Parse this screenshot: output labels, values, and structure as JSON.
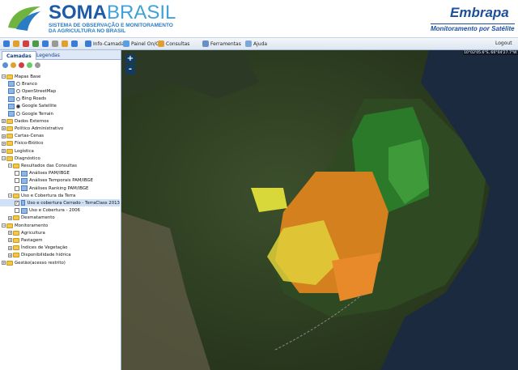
{
  "header": {
    "title_bold": "SOMA",
    "title_light": "BRASIL",
    "subtitle_lines": [
      "SISTEMA DE OBSERVAÇÃO E MONITORAMENTO",
      "DA AGRICULTURA NO BRASIL"
    ],
    "partner": "Embrapa",
    "partner_tagline": "Monitoramento por Satélite"
  },
  "toolbar": {
    "buttons": [
      "Info-Camada",
      "Painel On/Off",
      "Consultas",
      "Ferramentas",
      "Ajuda"
    ],
    "logout": "Logout"
  },
  "panel": {
    "tabs": [
      "Camadas",
      "Legendas"
    ],
    "tree": [
      {
        "label": "Mapas Base",
        "children": [
          {
            "label": "Branco"
          },
          {
            "label": "OpenStreetMap"
          },
          {
            "label": "Bing Roads"
          },
          {
            "label": "Google Satellite",
            "selected": true
          },
          {
            "label": "Google Terrain"
          }
        ]
      },
      {
        "label": "Dados Externos",
        "children": []
      },
      {
        "label": "Político Administrativo",
        "children": []
      },
      {
        "label": "Cartas-Cenas",
        "children": []
      },
      {
        "label": "Físico-Biótico",
        "children": []
      },
      {
        "label": "Logística",
        "children": []
      },
      {
        "label": "Diagnóstico",
        "children": [
          {
            "label": "Resultados das Consultas",
            "children": [
              {
                "label": "Análises PAM/IBGE"
              },
              {
                "label": "Análises Temporais PAM/IBGE"
              },
              {
                "label": "Análises Ranking PAM/IBGE"
              }
            ]
          },
          {
            "label": "Uso e Cobertura da Terra",
            "children": [
              {
                "label": "Uso e cobertura Cerrado - TerraClass 2013",
                "selected": true
              },
              {
                "label": "Uso e Cobertura - 2006"
              }
            ]
          },
          {
            "label": "Desmatamento",
            "children": []
          }
        ]
      },
      {
        "label": "Monitoramento",
        "children": [
          {
            "label": "Agricultura",
            "children": []
          },
          {
            "label": "Pastagem",
            "children": []
          },
          {
            "label": "Índices de Vegetação",
            "children": []
          },
          {
            "label": "Disponibilidade hídrica",
            "children": []
          }
        ]
      },
      {
        "label": "Gestão(acesso restrito)",
        "children": []
      }
    ]
  },
  "map": {
    "coordinates": "10°02'05.6\"S, 66°04'27.7\"W",
    "zoom": [
      "+",
      "-"
    ]
  }
}
